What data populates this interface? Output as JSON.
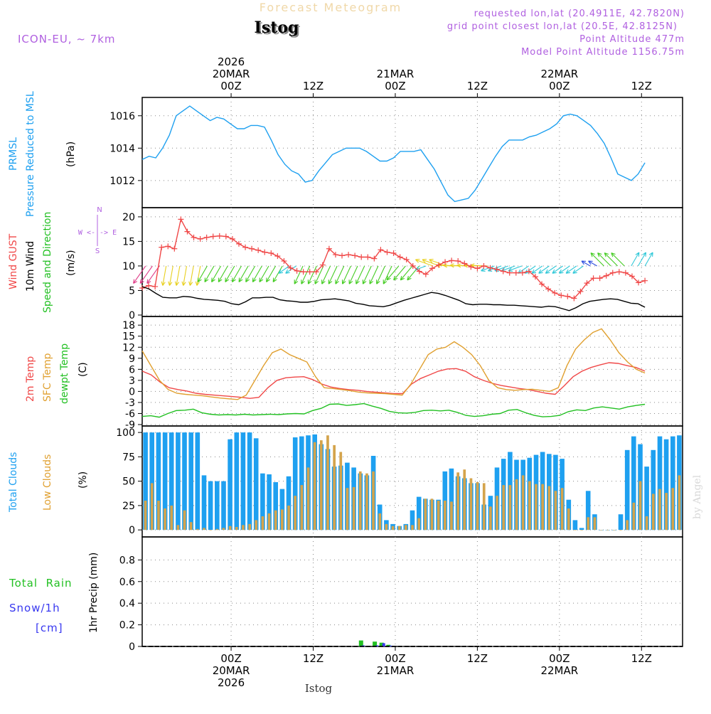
{
  "header": {
    "suptitle": "Forecast Meteogram",
    "location": "Istog",
    "model": "ICON-EU, ~ 7km",
    "requested": "requested lon,lat (20.4911E, 42.7820N)",
    "gridpoint": "grid point closest lon,lat (20.5E, 42.8125N)",
    "point_alt": "Point Altitude 477m",
    "model_alt": "Model Point Altitude 1156.75m"
  },
  "footer": {
    "station": "Istog",
    "watermark": "by Angel"
  },
  "colors": {
    "pressure": "#1ea0f0",
    "gust": "#f04848",
    "wind": "#000000",
    "temp2m": "#f04848",
    "sfc": "#e0a030",
    "dewpt": "#22c022",
    "total_clouds": "#1ea0f0",
    "low_clouds": "#d4a44c",
    "rain": "#22c022",
    "snow": "#3838f0",
    "purple": "#b060e0"
  },
  "chart_data": {
    "type": "line",
    "x_unit": "forecast hours from 2026-03-19 12Z",
    "top_axis": [
      {
        "hour": 12,
        "lines": [
          "2026",
          "20MAR",
          "00Z"
        ]
      },
      {
        "hour": 24,
        "lines": [
          "12Z"
        ]
      },
      {
        "hour": 36,
        "lines": [
          "21MAR",
          "00Z"
        ]
      },
      {
        "hour": 48,
        "lines": [
          "12Z"
        ]
      },
      {
        "hour": 60,
        "lines": [
          "22MAR",
          "00Z"
        ]
      },
      {
        "hour": 72,
        "lines": [
          "12Z"
        ]
      }
    ],
    "bottom_axis": [
      {
        "hour": 12,
        "lines": [
          "00Z",
          "20MAR",
          "2026"
        ]
      },
      {
        "hour": 24,
        "lines": [
          "12Z"
        ]
      },
      {
        "hour": 36,
        "lines": [
          "00Z",
          "21MAR"
        ]
      },
      {
        "hour": 48,
        "lines": [
          "12Z"
        ]
      },
      {
        "hour": 60,
        "lines": [
          "00Z",
          "22MAR"
        ]
      },
      {
        "hour": 72,
        "lines": [
          "12Z"
        ]
      }
    ],
    "panels": [
      {
        "id": "pressure",
        "labels": [
          "PRMSL",
          "Pressure Reduced to MSL"
        ],
        "unit": "(hPa)",
        "ylim": [
          1010.5,
          1017
        ],
        "yticks": [
          1012,
          1014,
          1016
        ],
        "series": [
          {
            "name": "PRMSL",
            "color_key": "pressure",
            "style": "line",
            "values": [
              1013.3,
              1013.5,
              1013.4,
              1014.0,
              1014.8,
              1016.0,
              1016.3,
              1016.6,
              1016.3,
              1016.0,
              1015.7,
              1015.9,
              1015.8,
              1015.5,
              1015.2,
              1015.2,
              1015.4,
              1015.4,
              1015.3,
              1014.5,
              1013.6,
              1013.0,
              1012.6,
              1012.4,
              1011.9,
              1012.0,
              1012.6,
              1013.1,
              1013.6,
              1013.8,
              1014.0,
              1014.0,
              1014.0,
              1013.8,
              1013.5,
              1013.2,
              1013.2,
              1013.4,
              1013.8,
              1013.8,
              1013.8,
              1013.9,
              1013.3,
              1012.7,
              1011.9,
              1011.1,
              1010.7,
              1010.8,
              1010.9,
              1011.4,
              1012.1,
              1012.8,
              1013.5,
              1014.1,
              1014.5,
              1014.5,
              1014.5,
              1014.7,
              1014.8,
              1015.0,
              1015.2,
              1015.5,
              1016.0,
              1016.1,
              1016.0,
              1015.7,
              1015.4,
              1014.9,
              1014.3,
              1013.4,
              1012.4,
              1012.2,
              1012.0,
              1012.4,
              1013.1
            ]
          }
        ]
      },
      {
        "id": "wind",
        "labels": [
          "Wind GUST",
          "10m Wind",
          "Speed and Direction"
        ],
        "unit": "(m/s)",
        "compass": [
          "N",
          "W <-|-> E",
          "S"
        ],
        "ylim": [
          0,
          21
        ],
        "yticks": [
          0,
          5,
          10,
          15,
          20
        ],
        "series": [
          {
            "name": "Wind GUST",
            "color_key": "gust",
            "style": "line-plus",
            "values": [
              5.5,
              6.0,
              5.8,
              13.8,
              14.0,
              13.5,
              19.5,
              17.0,
              15.8,
              15.5,
              15.8,
              16.0,
              16.1,
              16.0,
              15.5,
              14.5,
              13.8,
              13.5,
              13.2,
              12.8,
              12.6,
              12.0,
              11.0,
              9.6,
              9.0,
              8.8,
              8.8,
              8.8,
              10.2,
              13.5,
              12.3,
              12.1,
              12.3,
              12.1,
              11.8,
              11.8,
              11.5,
              13.3,
              12.8,
              12.6,
              11.8,
              11.3,
              10.0,
              8.9,
              8.3,
              9.5,
              10.2,
              10.8,
              11.1,
              11.0,
              10.5,
              9.8,
              9.5,
              10.0,
              9.6,
              9.3,
              8.9,
              8.6,
              8.6,
              8.6,
              8.9,
              7.8,
              6.3,
              5.3,
              4.5,
              4.0,
              3.8,
              3.4,
              4.8,
              6.5,
              7.5,
              7.5,
              8.0,
              8.6,
              8.8,
              8.6,
              7.9,
              6.6,
              7.0
            ]
          },
          {
            "name": "10m Wind",
            "color_key": "wind",
            "style": "line",
            "values": [
              5.8,
              5.3,
              4.4,
              3.6,
              3.5,
              3.5,
              3.8,
              3.7,
              3.4,
              3.2,
              3.1,
              3.0,
              2.8,
              2.3,
              2.1,
              2.7,
              3.5,
              3.5,
              3.6,
              3.6,
              3.1,
              2.9,
              2.8,
              2.6,
              2.6,
              2.8,
              3.1,
              3.2,
              3.3,
              3.1,
              2.9,
              2.4,
              2.2,
              1.9,
              1.8,
              1.7,
              2.0,
              2.5,
              3.0,
              3.4,
              3.8,
              4.2,
              4.6,
              4.4,
              4.0,
              3.5,
              3.0,
              2.3,
              2.1,
              2.2,
              2.2,
              2.1,
              2.1,
              2.0,
              2.0,
              1.9,
              1.8,
              1.7,
              1.6,
              1.8,
              1.7,
              1.3,
              0.9,
              1.5,
              2.3,
              2.8,
              3.0,
              3.2,
              3.3,
              3.2,
              2.8,
              2.4,
              2.3,
              1.6
            ]
          },
          {
            "name": "Speed and Direction",
            "color_key": "rain",
            "style": "arrows",
            "note": "wind barbs, colours vary by speed"
          }
        ]
      },
      {
        "id": "temperature",
        "labels": [
          "2m Temp",
          "SFC Temp",
          "dewpt Temp"
        ],
        "unit": "(C)",
        "ylim": [
          -9,
          19
        ],
        "yticks": [
          -9,
          -6,
          -3,
          0,
          3,
          6,
          9,
          12,
          15,
          18
        ],
        "series": [
          {
            "name": "2m Temp",
            "color_key": "temp2m",
            "style": "line",
            "values": [
              5.5,
              4.5,
              2.5,
              1.0,
              0.5,
              0.1,
              -0.5,
              -0.8,
              -1.0,
              -1.2,
              -1.4,
              -1.6,
              -1.9,
              -1.6,
              1.0,
              3.0,
              3.7,
              3.9,
              4.0,
              3.2,
              2.0,
              1.2,
              0.8,
              0.5,
              0.3,
              0.0,
              -0.2,
              -0.4,
              -0.6,
              -0.6,
              2.0,
              3.5,
              4.5,
              5.5,
              6.1,
              6.2,
              5.5,
              4.0,
              3.0,
              2.2,
              1.6,
              1.2,
              0.8,
              0.5,
              0.0,
              -0.5,
              -0.8,
              1.5,
              4.0,
              5.5,
              6.5,
              7.2,
              7.8,
              7.6,
              7.0,
              6.5,
              5.5
            ]
          },
          {
            "name": "SFC Temp",
            "color_key": "sfc",
            "style": "line",
            "values": [
              11.0,
              7.0,
              3.0,
              0.5,
              -0.5,
              -0.8,
              -1.0,
              -1.2,
              -1.5,
              -1.8,
              -2.0,
              -2.2,
              -1.0,
              3.0,
              7.0,
              10.5,
              11.5,
              10.0,
              9.0,
              8.0,
              4.0,
              1.0,
              0.8,
              0.5,
              0.2,
              -0.2,
              -0.4,
              -0.5,
              -0.6,
              -0.8,
              -1.0,
              2.0,
              6.0,
              10.0,
              11.5,
              12.0,
              13.5,
              12.0,
              10.0,
              7.0,
              3.0,
              1.0,
              0.5,
              0.3,
              0.5,
              0.6,
              0.3,
              0.0,
              1.0,
              7.0,
              11.5,
              14.0,
              16.0,
              17.0,
              14.0,
              10.5,
              8.0,
              6.0,
              5.0
            ]
          },
          {
            "name": "dewpt Temp",
            "color_key": "dewpt",
            "style": "line",
            "values": [
              -6.8,
              -6.6,
              -7.0,
              -6.0,
              -5.2,
              -5.1,
              -4.8,
              -5.8,
              -6.2,
              -6.4,
              -6.3,
              -6.4,
              -6.2,
              -6.4,
              -6.3,
              -6.2,
              -6.3,
              -6.1,
              -6.0,
              -6.1,
              -5.2,
              -4.6,
              -3.5,
              -3.4,
              -3.8,
              -3.6,
              -3.3,
              -4.0,
              -4.6,
              -5.4,
              -5.8,
              -5.9,
              -5.7,
              -5.2,
              -5.1,
              -5.3,
              -5.1,
              -5.7,
              -6.5,
              -6.8,
              -6.6,
              -6.2,
              -6.0,
              -5.1,
              -4.9,
              -5.8,
              -6.5,
              -6.9,
              -6.8,
              -6.5,
              -5.5,
              -5.0,
              -5.2,
              -4.5,
              -4.2,
              -4.5,
              -4.8,
              -4.2,
              -3.8,
              -3.5
            ]
          }
        ]
      },
      {
        "id": "clouds",
        "labels": [
          "Total Clouds",
          "Low Clouds"
        ],
        "unit": "(%)",
        "ylim": [
          -5,
          103
        ],
        "yticks": [
          0,
          25,
          50,
          75,
          100
        ],
        "series": [
          {
            "name": "Total Clouds",
            "color_key": "total_clouds",
            "style": "bar",
            "values": [
              100,
              100,
              100,
              100,
              100,
              100,
              100,
              100,
              100,
              56,
              50,
              50,
              50,
              93,
              100,
              100,
              100,
              94,
              58,
              57,
              49,
              42,
              55,
              95,
              96,
              97,
              98,
              88,
              83,
              65,
              66,
              69,
              64,
              58,
              56,
              76,
              26,
              10,
              6,
              4,
              6,
              20,
              34,
              32,
              31,
              31,
              60,
              63,
              55,
              53,
              48,
              48,
              26,
              35,
              64,
              73,
              80,
              72,
              72,
              74,
              77,
              80,
              78,
              77,
              73,
              31,
              10,
              2,
              40,
              16,
              0,
              0,
              0,
              16,
              82,
              96,
              88,
              65,
              82,
              96,
              93,
              96,
              97
            ]
          },
          {
            "name": "Low Clouds",
            "color_key": "low_clouds",
            "style": "bar",
            "values": [
              30,
              48,
              30,
              22,
              25,
              5,
              20,
              8,
              1,
              2,
              0,
              1,
              2,
              4,
              3,
              5,
              6,
              10,
              14,
              17,
              20,
              21,
              25,
              35,
              46,
              64,
              90,
              92,
              97,
              87,
              80,
              43,
              44,
              60,
              58,
              60,
              17,
              6,
              4,
              4,
              5,
              5,
              12,
              32,
              32,
              30,
              30,
              29,
              59,
              62,
              53,
              49,
              48,
              24,
              35,
              46,
              46,
              52,
              56,
              50,
              47,
              47,
              45,
              40,
              43,
              22,
              0,
              0,
              13,
              13,
              0,
              0,
              0,
              0,
              10,
              28,
              50,
              14,
              37,
              42,
              38,
              43,
              56
            ]
          }
        ]
      },
      {
        "id": "precip",
        "labels": [
          "Total  Rain",
          "Snow/1h",
          "[cm]"
        ],
        "unit": "1hr Precip (mm)",
        "ylim": [
          0,
          0.98
        ],
        "yticks": [
          0,
          0.2,
          0.4,
          0.6,
          0.8
        ],
        "series": [
          {
            "name": "Total Rain",
            "color_key": "rain",
            "style": "bar",
            "values": [
              {
                "hour": 31,
                "value": 0.055
              },
              {
                "hour": 33,
                "value": 0.045
              },
              {
                "hour": 34,
                "value": 0.035
              },
              {
                "hour": 35,
                "value": 0.015
              }
            ]
          },
          {
            "name": "Snow/1h",
            "color_key": "snow",
            "style": "bar",
            "values": [
              {
                "hour": 31,
                "value": 0.01
              },
              {
                "hour": 33,
                "value": 0.01
              },
              {
                "hour": 34,
                "value": 0.03
              },
              {
                "hour": 35,
                "value": 0.008
              }
            ]
          }
        ]
      }
    ]
  }
}
